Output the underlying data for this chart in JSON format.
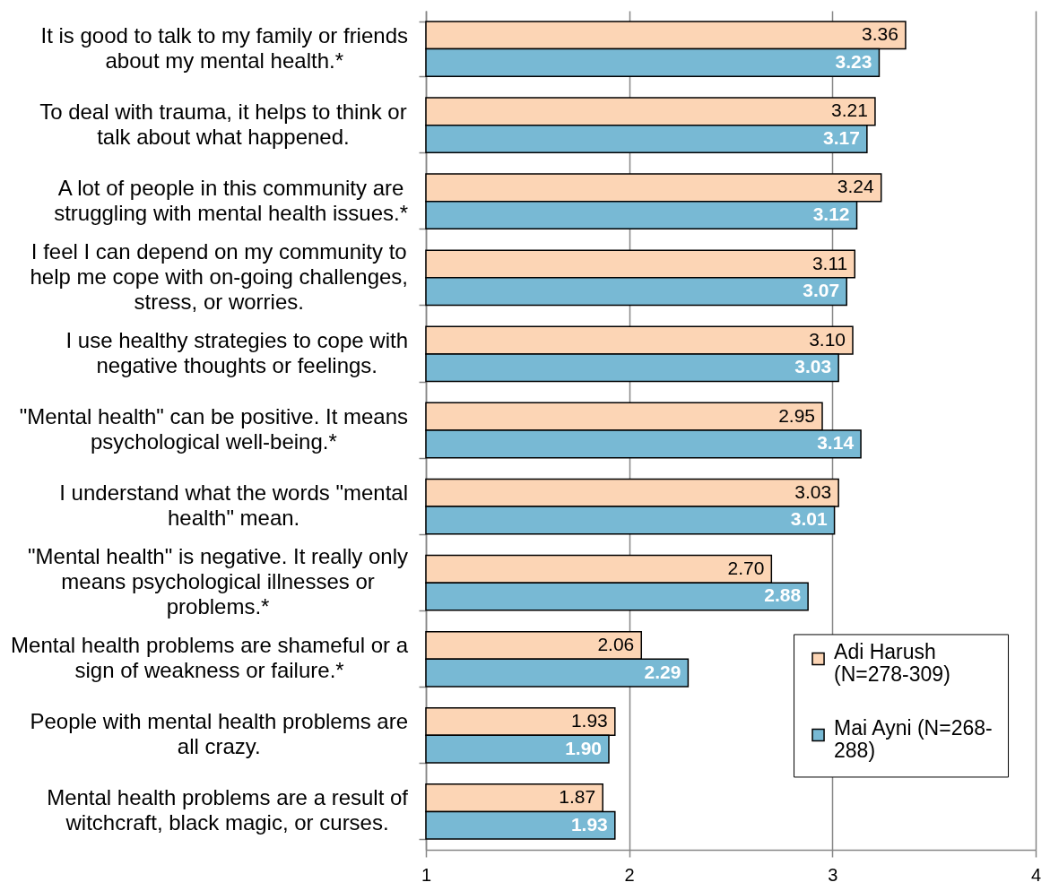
{
  "chart_data": {
    "type": "bar",
    "orientation": "horizontal",
    "categories": [
      "It is good to talk to my family or friends about my mental health.*",
      "To deal with trauma, it helps to think or talk about what happened.",
      "A lot of people in this community are struggling with mental health issues.*",
      "I feel I can depend on my community to help me cope with on-going challenges, stress, or worries.",
      "I use healthy strategies to cope with negative thoughts or feelings.",
      "\"Mental health\" can be positive. It means psychological well-being.*",
      "I understand what the words \"mental health\" mean.",
      "\"Mental health\" is negative. It really only means psychological illnesses or problems.*",
      "Mental health problems are shameful or a sign of weakness or failure.*",
      "People with mental health problems are all crazy.",
      "Mental health problems are a result of witchcraft, black magic, or curses."
    ],
    "series": [
      {
        "name": "Adi Harush (N=278-309)",
        "color": "#fcd5b5",
        "values": [
          3.36,
          3.21,
          3.24,
          3.11,
          3.1,
          2.95,
          3.03,
          2.7,
          2.06,
          1.93,
          1.87
        ],
        "value_labels": [
          "3.36",
          "3.21",
          "3.24",
          "3.11",
          "3.10",
          "2.95",
          "3.03",
          "2.70",
          "2.06",
          "1.93",
          "1.87"
        ]
      },
      {
        "name": "Mai Ayni (N=268-288)",
        "color": "#78b9d4",
        "values": [
          3.23,
          3.17,
          3.12,
          3.07,
          3.03,
          3.14,
          3.01,
          2.88,
          2.29,
          1.9,
          1.93
        ],
        "value_labels": [
          "3.23",
          "3.17",
          "3.12",
          "3.07",
          "3.03",
          "3.14",
          "3.01",
          "2.88",
          "2.29",
          "1.90",
          "1.93"
        ]
      }
    ],
    "xlim": [
      1,
      4
    ],
    "xticks": [
      1,
      2,
      3,
      4
    ],
    "grid": "x",
    "legend": "bottom right"
  }
}
